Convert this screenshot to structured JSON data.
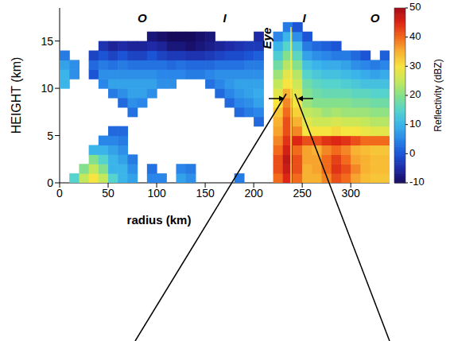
{
  "chart_data": {
    "type": "heatmap",
    "x_label": "radius (km)",
    "y_label": "HEIGHT (km)",
    "xlim": [
      0,
      340
    ],
    "xticks": [
      0,
      50,
      100,
      150,
      200,
      250,
      300
    ],
    "ylim": [
      0,
      18.5
    ],
    "yticks": [
      0,
      5,
      10,
      15
    ],
    "radius": [
      5,
      15,
      25,
      35,
      45,
      55,
      65,
      75,
      85,
      95,
      105,
      115,
      125,
      135,
      145,
      155,
      165,
      175,
      185,
      195,
      205,
      215,
      225,
      235,
      245,
      255,
      265,
      275,
      285,
      295,
      305,
      315,
      325,
      335
    ],
    "height": [
      0.5,
      1.5,
      2.5,
      3.5,
      4.5,
      5.5,
      6.5,
      7.5,
      8.5,
      9.5,
      10.5,
      11.5,
      12.5,
      13.5,
      14.5,
      15.5,
      16.5,
      17.5
    ],
    "dbz": [
      [
        null,
        null,
        null,
        null,
        null,
        null,
        null,
        null,
        null,
        null,
        10,
        10,
        8,
        4,
        null,
        null,
        null,
        null
      ],
      [
        15,
        null,
        null,
        null,
        null,
        null,
        null,
        null,
        null,
        null,
        null,
        6,
        6,
        null,
        null,
        null,
        null,
        null
      ],
      [
        25,
        20,
        null,
        null,
        null,
        null,
        null,
        null,
        null,
        null,
        null,
        null,
        null,
        null,
        null,
        null,
        null,
        null
      ],
      [
        30,
        25,
        20,
        10,
        null,
        null,
        null,
        null,
        null,
        null,
        null,
        0,
        2,
        -2,
        null,
        null,
        null,
        null
      ],
      [
        25,
        20,
        15,
        10,
        5,
        null,
        null,
        null,
        null,
        null,
        5,
        6,
        4,
        0,
        -4,
        null,
        null,
        null
      ],
      [
        15,
        10,
        10,
        8,
        5,
        2,
        null,
        null,
        null,
        4,
        8,
        6,
        3,
        -2,
        -6,
        null,
        null,
        null
      ],
      [
        10,
        10,
        8,
        6,
        4,
        2,
        null,
        null,
        2,
        6,
        8,
        6,
        4,
        0,
        -5,
        null,
        null,
        null
      ],
      [
        8,
        6,
        4,
        null,
        null,
        null,
        null,
        3,
        6,
        8,
        8,
        6,
        3,
        -2,
        -6,
        null,
        null,
        null
      ],
      [
        null,
        null,
        null,
        null,
        null,
        null,
        null,
        null,
        5,
        8,
        8,
        6,
        3,
        -2,
        -6,
        null,
        null,
        null
      ],
      [
        5,
        3,
        null,
        null,
        null,
        null,
        null,
        null,
        null,
        6,
        8,
        6,
        3,
        0,
        -5,
        -8,
        null,
        null
      ],
      [
        5,
        null,
        null,
        null,
        null,
        null,
        null,
        null,
        null,
        null,
        6,
        5,
        3,
        -2,
        -6,
        -9,
        null,
        null
      ],
      [
        null,
        null,
        null,
        null,
        null,
        null,
        null,
        null,
        null,
        null,
        6,
        5,
        2,
        -3,
        -8,
        -10,
        null,
        null
      ],
      [
        8,
        5,
        null,
        null,
        null,
        null,
        null,
        null,
        null,
        null,
        null,
        5,
        3,
        -3,
        -8,
        -10,
        null,
        null
      ],
      [
        6,
        4,
        null,
        null,
        null,
        null,
        null,
        null,
        null,
        null,
        null,
        4,
        2,
        -4,
        -9,
        -10,
        null,
        null
      ],
      [
        null,
        null,
        null,
        null,
        null,
        null,
        null,
        null,
        null,
        null,
        null,
        4,
        2,
        -4,
        -8,
        -9,
        null,
        null
      ],
      [
        null,
        null,
        null,
        null,
        null,
        null,
        null,
        null,
        null,
        null,
        3,
        5,
        2,
        -3,
        -7,
        -8,
        null,
        null
      ],
      [
        null,
        null,
        null,
        null,
        null,
        null,
        null,
        null,
        null,
        2,
        5,
        6,
        3,
        -2,
        -6,
        null,
        null,
        null
      ],
      [
        null,
        null,
        null,
        null,
        null,
        null,
        null,
        null,
        2,
        5,
        7,
        6,
        3,
        -1,
        -5,
        null,
        null,
        null
      ],
      [
        4,
        null,
        null,
        null,
        null,
        null,
        null,
        2,
        5,
        7,
        8,
        6,
        3,
        -1,
        -4,
        null,
        null,
        null
      ],
      [
        null,
        null,
        null,
        null,
        null,
        null,
        null,
        4,
        6,
        8,
        8,
        6,
        4,
        0,
        -3,
        null,
        null,
        null
      ],
      [
        null,
        null,
        null,
        null,
        null,
        null,
        2,
        5,
        8,
        9,
        8,
        6,
        4,
        1,
        -3,
        -5,
        null,
        null
      ],
      [
        null,
        null,
        null,
        null,
        null,
        null,
        null,
        null,
        null,
        null,
        null,
        null,
        null,
        null,
        null,
        null,
        null,
        null
      ],
      [
        40,
        42,
        42,
        40,
        38,
        36,
        35,
        33,
        30,
        28,
        25,
        22,
        18,
        14,
        10,
        5,
        null,
        null
      ],
      [
        45,
        47,
        48,
        46,
        44,
        42,
        42,
        40,
        38,
        35,
        30,
        28,
        24,
        20,
        15,
        10,
        4,
        null
      ],
      [
        40,
        42,
        42,
        40,
        45,
        38,
        35,
        32,
        30,
        28,
        26,
        24,
        20,
        16,
        12,
        6,
        0,
        null
      ],
      [
        35,
        35,
        36,
        36,
        42,
        30,
        28,
        25,
        22,
        20,
        18,
        15,
        12,
        8,
        4,
        0,
        null,
        null
      ],
      [
        35,
        36,
        36,
        35,
        42,
        30,
        26,
        24,
        20,
        18,
        16,
        13,
        10,
        6,
        2,
        null,
        null,
        null
      ],
      [
        38,
        40,
        40,
        38,
        44,
        30,
        26,
        22,
        20,
        17,
        15,
        12,
        9,
        5,
        1,
        null,
        null,
        null
      ],
      [
        42,
        44,
        43,
        40,
        45,
        31,
        27,
        23,
        20,
        17,
        15,
        12,
        9,
        4,
        0,
        null,
        null,
        null
      ],
      [
        40,
        42,
        40,
        38,
        44,
        30,
        26,
        22,
        20,
        17,
        14,
        11,
        8,
        4,
        null,
        null,
        null,
        null
      ],
      [
        36,
        38,
        36,
        35,
        42,
        30,
        26,
        22,
        19,
        16,
        13,
        10,
        6,
        2,
        null,
        null,
        null,
        null
      ],
      [
        34,
        35,
        35,
        34,
        40,
        29,
        25,
        22,
        19,
        16,
        12,
        9,
        5,
        0,
        null,
        null,
        null,
        null
      ],
      [
        33,
        34,
        34,
        33,
        40,
        28,
        24,
        21,
        18,
        15,
        12,
        8,
        4,
        null,
        null,
        null,
        null,
        null
      ],
      [
        33,
        34,
        34,
        33,
        40,
        28,
        24,
        21,
        18,
        15,
        12,
        9,
        5,
        1,
        null,
        null,
        null,
        null
      ]
    ],
    "colorbar": {
      "label": "Reflectivity (dBZ)",
      "range": [
        -10,
        50
      ],
      "ticks": [
        -10,
        0,
        10,
        20,
        30,
        40,
        50
      ]
    },
    "annotations": [
      {
        "text": "O",
        "x": 85,
        "y": 17.3
      },
      {
        "text": "I",
        "x": 170,
        "y": 17.3
      },
      {
        "text": "Eye",
        "x": 215,
        "y": 15.3
      },
      {
        "text": "I",
        "x": 252,
        "y": 17.3
      },
      {
        "text": "O",
        "x": 325,
        "y": 17.3
      }
    ]
  }
}
